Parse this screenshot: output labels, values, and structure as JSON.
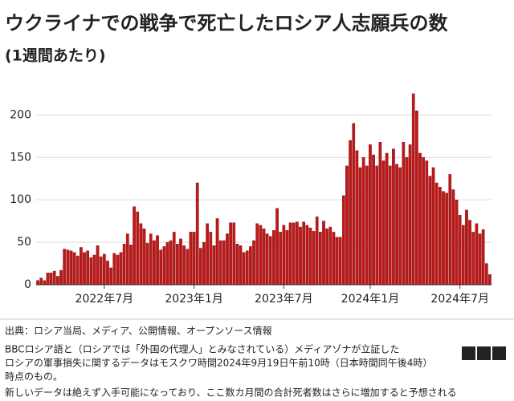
{
  "chart_data": {
    "type": "bar",
    "title": "ウクライナでの戦争で死亡したロシア人志願兵の数",
    "subtitle": "(1週間あたり)",
    "categories": [
      null,
      null,
      null,
      null,
      null,
      null,
      null,
      null,
      null,
      null,
      null,
      null,
      null,
      null,
      null,
      null,
      null,
      null,
      null,
      null,
      "2022年7月",
      null,
      null,
      null,
      null,
      null,
      null,
      null,
      null,
      null,
      null,
      null,
      null,
      null,
      null,
      null,
      null,
      null,
      null,
      null,
      null,
      null,
      null,
      null,
      null,
      null,
      null,
      "2023年1月",
      null,
      null,
      null,
      null,
      null,
      null,
      null,
      null,
      null,
      null,
      null,
      null,
      null,
      null,
      null,
      null,
      null,
      null,
      null,
      null,
      null,
      null,
      null,
      null,
      null,
      null,
      "2023年7月",
      null,
      null,
      null,
      null,
      null,
      null,
      null,
      null,
      null,
      null,
      null,
      null,
      null,
      null,
      null,
      null,
      null,
      null,
      null,
      null,
      null,
      null,
      null,
      null,
      null,
      "2024年1月",
      null,
      null,
      null,
      null,
      null,
      null,
      null,
      null,
      null,
      null,
      null,
      null,
      null,
      null,
      null,
      null,
      null,
      null,
      null,
      null,
      null,
      null,
      null,
      null,
      null,
      null,
      "2024年7月",
      null,
      null,
      null,
      null,
      null,
      null,
      null,
      null,
      null
    ],
    "values": [
      5,
      8,
      5,
      14,
      14,
      16,
      10,
      17,
      42,
      41,
      40,
      38,
      34,
      44,
      38,
      40,
      32,
      35,
      46,
      33,
      36,
      28,
      20,
      37,
      35,
      38,
      48,
      60,
      47,
      92,
      86,
      72,
      66,
      49,
      60,
      52,
      58,
      41,
      45,
      50,
      52,
      62,
      48,
      54,
      46,
      42,
      62,
      62,
      120,
      43,
      50,
      72,
      62,
      46,
      78,
      52,
      52,
      60,
      73,
      73,
      48,
      46,
      38,
      40,
      45,
      52,
      72,
      70,
      66,
      60,
      57,
      64,
      90,
      62,
      70,
      64,
      73,
      73,
      74,
      68,
      74,
      70,
      67,
      63,
      80,
      62,
      75,
      66,
      68,
      62,
      56,
      56,
      105,
      140,
      170,
      190,
      158,
      138,
      150,
      140,
      165,
      153,
      140,
      168,
      146,
      155,
      140,
      160,
      142,
      138,
      168,
      150,
      165,
      225,
      205,
      155,
      150,
      146,
      128,
      138,
      120,
      115,
      110,
      108,
      130,
      112,
      100,
      82,
      70,
      88,
      76,
      62,
      72,
      60,
      65,
      25,
      12
    ],
    "color": "#bb1919",
    "ylim": [
      0,
      240
    ],
    "yticks": [
      0,
      50,
      100,
      150,
      200
    ],
    "grid": true,
    "notes": [
      "出典：ロシア当局、メディア、公開情報、オープンソース情報",
      "BBCロシア語と（ロシアでは「外国の代理人」とみなされている）メディアゾナが立証した",
      "ロシアの軍事損失に関するデータはモスクワ時間2024年9月19日午前10時（日本時間同午後4時）",
      "時点のもの。",
      "新しいデータは絶えず入手可能になっており、ここ数カ月間の合計死者数はさらに増加すると予想される"
    ],
    "logo": [
      "B",
      "B",
      "C"
    ]
  }
}
